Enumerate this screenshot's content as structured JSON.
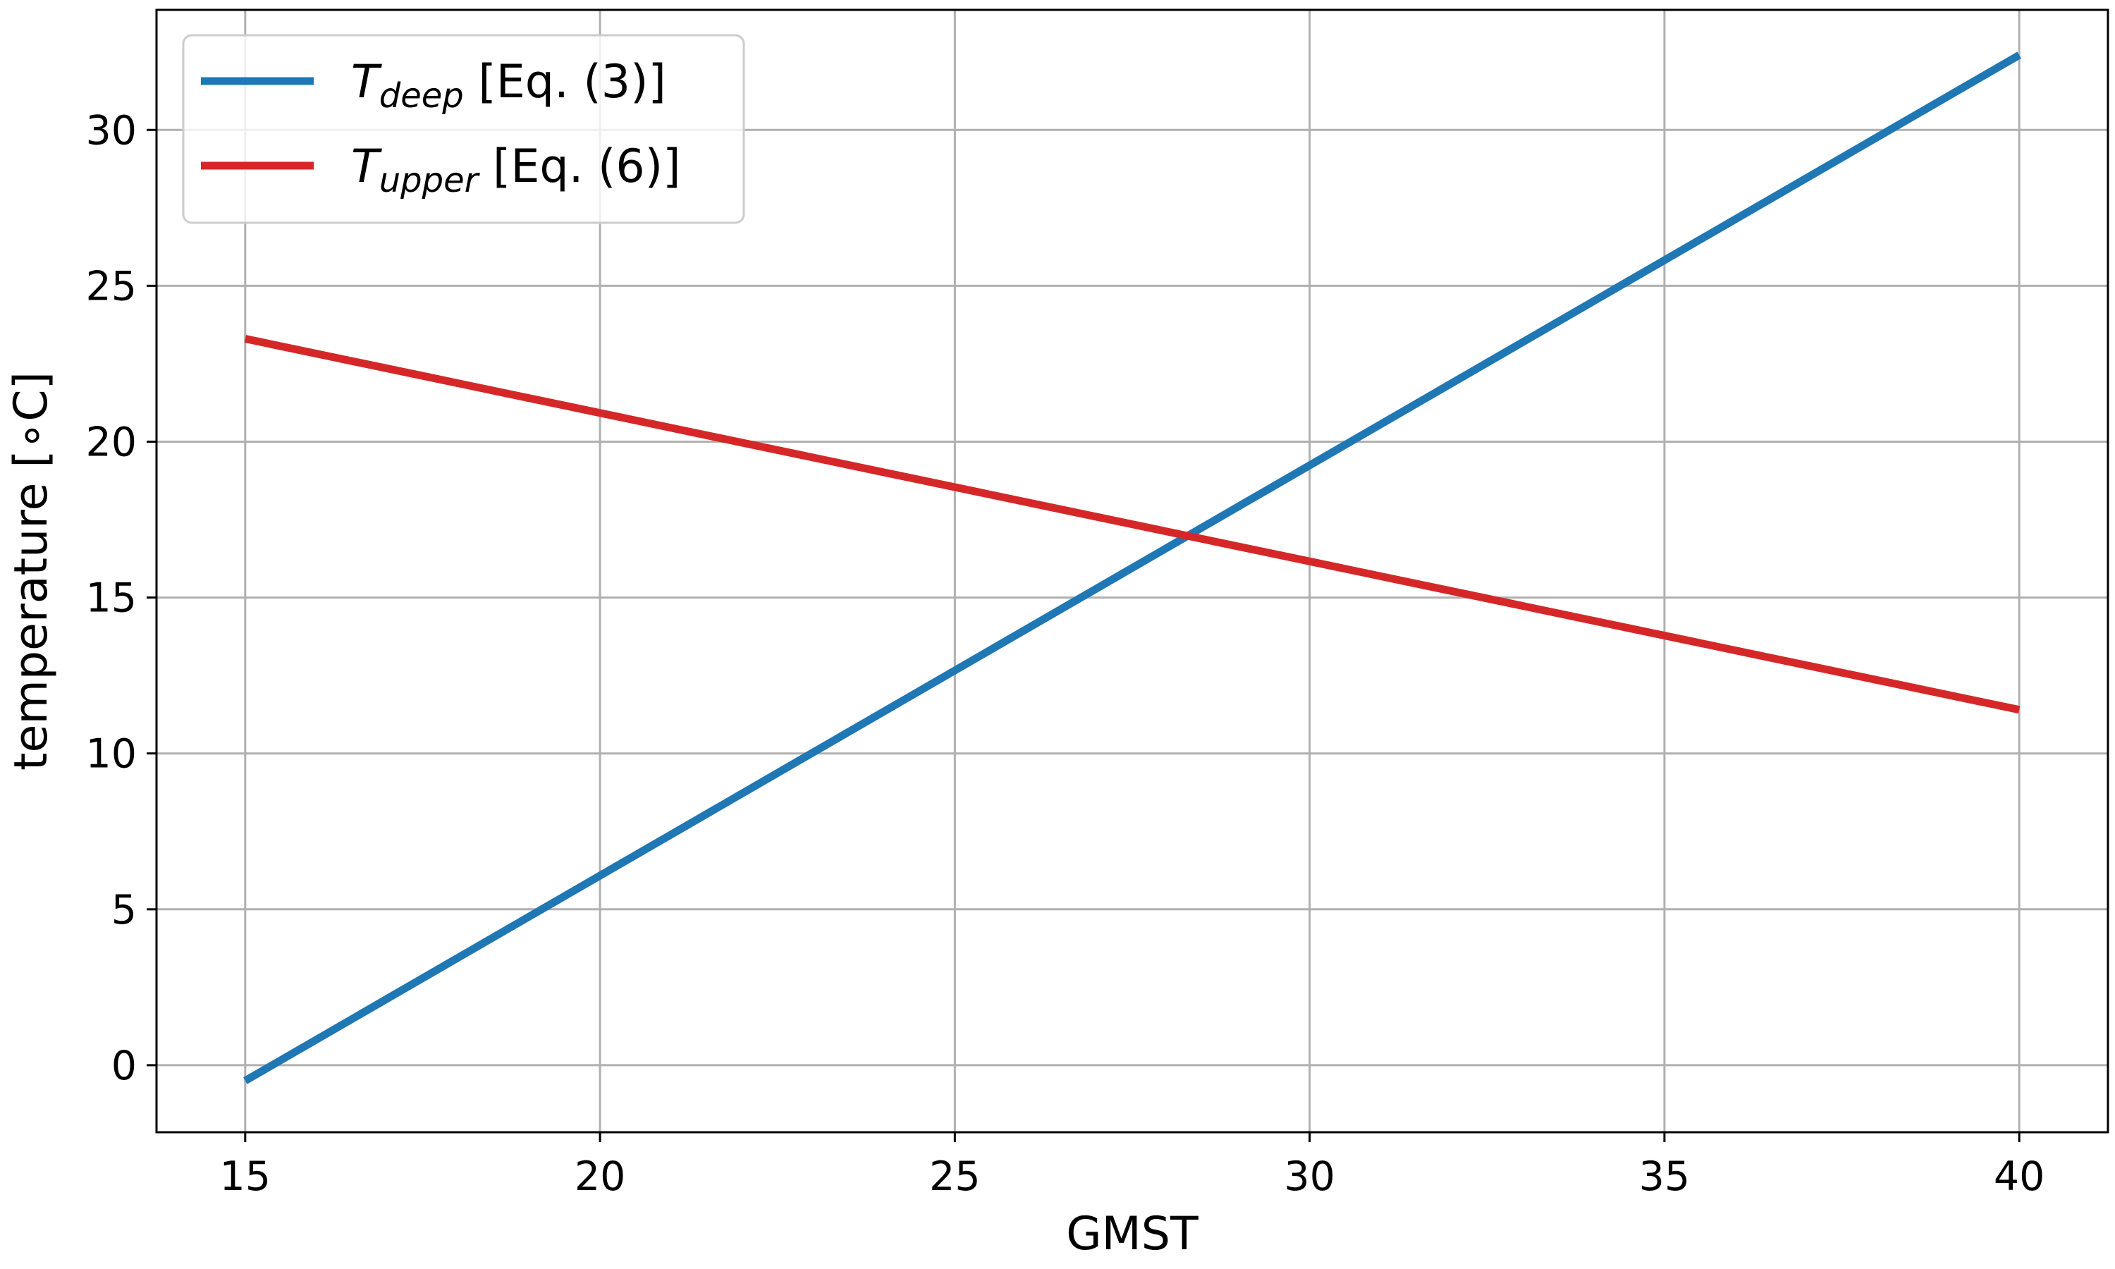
{
  "chart_data": {
    "type": "line",
    "xlabel": "GMST",
    "ylabel": "temperature [∘C]",
    "xlim": [
      13.75,
      41.25
    ],
    "ylim": [
      -2.15,
      33.85
    ],
    "xticks": [
      15,
      20,
      25,
      30,
      35,
      40
    ],
    "yticks": [
      0,
      5,
      10,
      15,
      20,
      25,
      30
    ],
    "grid": true,
    "legend_position": "top-left",
    "series": [
      {
        "name": "T_deep [Eq. (3)]",
        "legend_symbol": "T",
        "legend_subscript": "deep",
        "legend_rest": " [Eq. (3)]",
        "color": "#1f77b4",
        "x": [
          15,
          40
        ],
        "y": [
          -0.5,
          32.4
        ]
      },
      {
        "name": "T_upper [Eq. (6)]",
        "legend_symbol": "T",
        "legend_subscript": "upper",
        "legend_rest": " [Eq. (6)]",
        "color": "#d62728",
        "x": [
          15,
          40
        ],
        "y": [
          23.3,
          11.4
        ]
      }
    ]
  }
}
